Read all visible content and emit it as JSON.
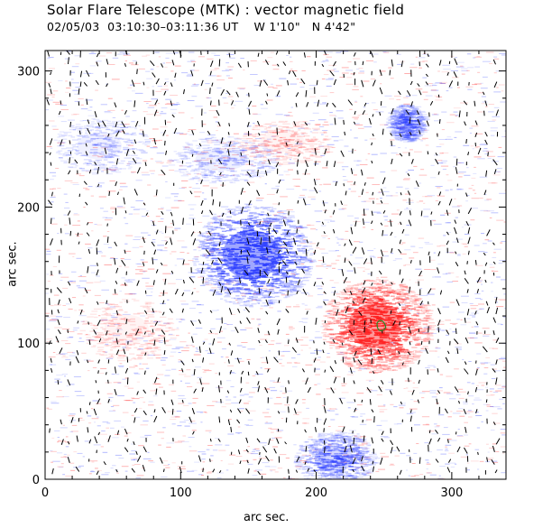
{
  "header": {
    "title": "Solar Flare Telescope (MTK) : vector magnetic field",
    "date": "02/05/03",
    "time_range": "03:10:30–03:11:36 UT",
    "position": "W 1'10\"   N 4'42\""
  },
  "chart_data": {
    "type": "heatmap",
    "xlabel": "arc sec.",
    "ylabel": "arc sec.",
    "xlim": [
      0,
      340
    ],
    "ylim": [
      0,
      315
    ],
    "x_ticks": [
      0,
      100,
      200,
      300
    ],
    "y_ticks": [
      0,
      100,
      200,
      300
    ],
    "colors": {
      "negative": "#2a3cff",
      "positive": "#ff2020",
      "contour": "#2a8a2a",
      "vector": "#000000"
    },
    "regions": [
      {
        "polarity": "negative",
        "cx": 152,
        "cy": 165,
        "rx": 38,
        "ry": 33,
        "strength": 1.0
      },
      {
        "polarity": "positive",
        "cx": 243,
        "cy": 113,
        "rx": 35,
        "ry": 30,
        "strength": 1.0
      },
      {
        "polarity": "negative",
        "cx": 213,
        "cy": 15,
        "rx": 26,
        "ry": 18,
        "strength": 0.45
      },
      {
        "polarity": "negative",
        "cx": 265,
        "cy": 262,
        "rx": 12,
        "ry": 12,
        "strength": 0.35
      },
      {
        "polarity": "negative",
        "cx": 130,
        "cy": 235,
        "rx": 35,
        "ry": 15,
        "strength": 0.18
      },
      {
        "polarity": "negative",
        "cx": 40,
        "cy": 245,
        "rx": 30,
        "ry": 18,
        "strength": 0.15
      },
      {
        "polarity": "positive",
        "cx": 175,
        "cy": 248,
        "rx": 30,
        "ry": 14,
        "strength": 0.12
      },
      {
        "polarity": "positive",
        "cx": 60,
        "cy": 110,
        "rx": 30,
        "ry": 20,
        "strength": 0.12
      }
    ]
  }
}
